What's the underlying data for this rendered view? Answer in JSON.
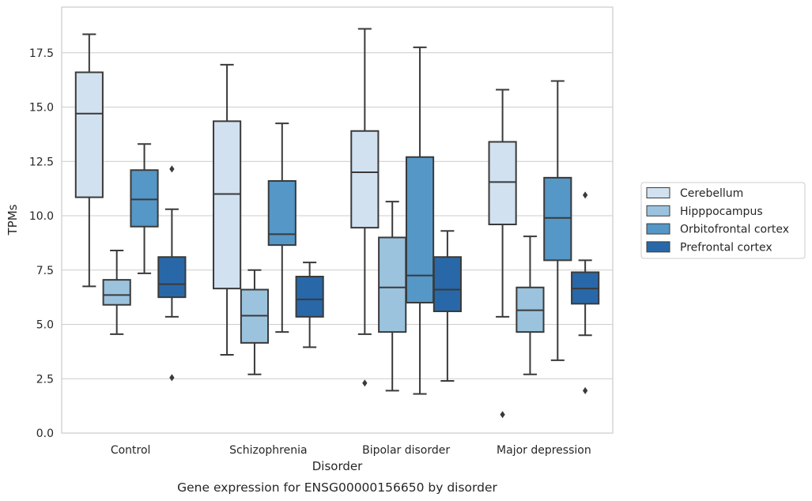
{
  "chart_data": {
    "type": "box",
    "title": "Gene expression for ENSG00000156650 by disorder",
    "xlabel": "Disorder",
    "ylabel": "TPMs",
    "ylim": [
      0,
      19.6
    ],
    "yticks": [
      0.0,
      2.5,
      5.0,
      7.5,
      10.0,
      12.5,
      15.0,
      17.5
    ],
    "ytick_labels": [
      "0.0",
      "2.5",
      "5.0",
      "7.5",
      "10.0",
      "12.5",
      "15.0",
      "17.5"
    ],
    "grid": "horizontal",
    "legend_position": "right",
    "categories": [
      "Control",
      "Schizophrenia",
      "Bipolar disorder",
      "Major depression"
    ],
    "series": [
      {
        "name": "Cerebellum",
        "color": "#d1e1f0",
        "boxes": [
          {
            "whislo": 6.75,
            "q1": 10.85,
            "med": 14.7,
            "q3": 16.6,
            "whishi": 18.35,
            "fliers": []
          },
          {
            "whislo": 3.6,
            "q1": 6.65,
            "med": 11.0,
            "q3": 14.35,
            "whishi": 16.95,
            "fliers": []
          },
          {
            "whislo": 4.55,
            "q1": 9.45,
            "med": 12.0,
            "q3": 13.9,
            "whishi": 18.6,
            "fliers": [
              2.3
            ]
          },
          {
            "whislo": 5.35,
            "q1": 9.6,
            "med": 11.55,
            "q3": 13.4,
            "whishi": 15.8,
            "fliers": [
              0.85
            ]
          }
        ]
      },
      {
        "name": "Hipppocampus",
        "color": "#9bc3de",
        "boxes": [
          {
            "whislo": 4.55,
            "q1": 5.9,
            "med": 6.35,
            "q3": 7.05,
            "whishi": 8.4,
            "fliers": []
          },
          {
            "whislo": 2.7,
            "q1": 4.15,
            "med": 5.4,
            "q3": 6.6,
            "whishi": 7.5,
            "fliers": []
          },
          {
            "whislo": 1.95,
            "q1": 4.65,
            "med": 6.7,
            "q3": 9.0,
            "whishi": 10.65,
            "fliers": []
          },
          {
            "whislo": 2.7,
            "q1": 4.65,
            "med": 5.65,
            "q3": 6.7,
            "whishi": 9.05,
            "fliers": []
          }
        ]
      },
      {
        "name": "Orbitofrontal cortex",
        "color": "#5597c6",
        "boxes": [
          {
            "whislo": 7.35,
            "q1": 9.5,
            "med": 10.75,
            "q3": 12.1,
            "whishi": 13.3,
            "fliers": []
          },
          {
            "whislo": 4.65,
            "q1": 8.65,
            "med": 9.15,
            "q3": 11.6,
            "whishi": 14.25,
            "fliers": []
          },
          {
            "whislo": 1.8,
            "q1": 6.0,
            "med": 7.25,
            "q3": 12.7,
            "whishi": 17.75,
            "fliers": []
          },
          {
            "whislo": 3.35,
            "q1": 7.95,
            "med": 9.9,
            "q3": 11.75,
            "whishi": 16.2,
            "fliers": []
          }
        ]
      },
      {
        "name": "Prefrontal cortex",
        "color": "#2968a8",
        "boxes": [
          {
            "whislo": 5.35,
            "q1": 6.25,
            "med": 6.85,
            "q3": 8.1,
            "whishi": 10.3,
            "fliers": [
              12.15,
              2.55
            ]
          },
          {
            "whislo": 3.95,
            "q1": 5.35,
            "med": 6.15,
            "q3": 7.2,
            "whishi": 7.85,
            "fliers": []
          },
          {
            "whislo": 2.4,
            "q1": 5.6,
            "med": 6.6,
            "q3": 8.1,
            "whishi": 9.3,
            "fliers": []
          },
          {
            "whislo": 4.5,
            "q1": 5.95,
            "med": 6.65,
            "q3": 7.4,
            "whishi": 7.95,
            "fliers": [
              10.95,
              1.95
            ]
          }
        ]
      }
    ]
  }
}
